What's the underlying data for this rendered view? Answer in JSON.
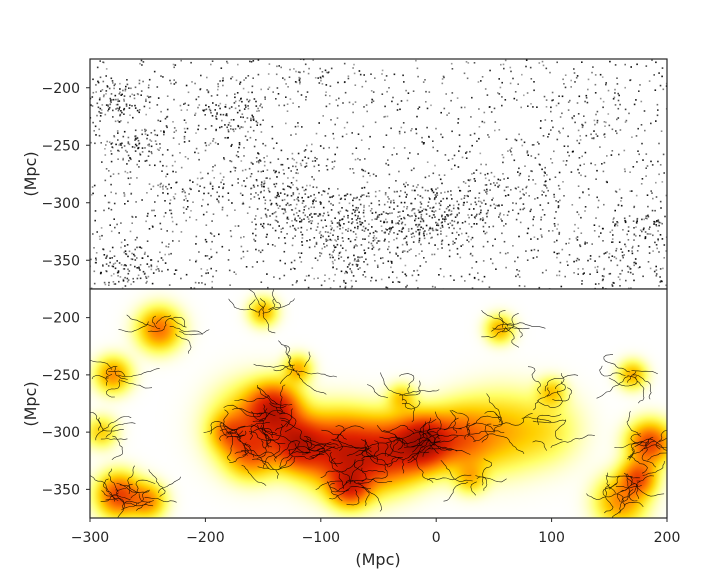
{
  "chart_data": [
    {
      "type": "scatter",
      "panel": "top",
      "description_free": true,
      "xlim": [
        -300,
        200
      ],
      "ylim": [
        -375,
        -175
      ],
      "ylabel": "(Mpc)",
      "yticks": [
        -200,
        -250,
        -300,
        -350
      ],
      "ytick_labels": [
        "−200",
        "−250",
        "−300",
        "−350"
      ],
      "grid": false,
      "point_color": "#000000",
      "clusters": [
        {
          "x": -280,
          "y": -210,
          "spread": 14,
          "weight": 60
        },
        {
          "x": -260,
          "y": -250,
          "spread": 12,
          "weight": 40
        },
        {
          "x": -200,
          "y": -230,
          "spread": 20,
          "weight": 30
        },
        {
          "x": -170,
          "y": -215,
          "spread": 15,
          "weight": 35
        },
        {
          "x": -140,
          "y": -280,
          "spread": 18,
          "weight": 70
        },
        {
          "x": -120,
          "y": -310,
          "spread": 15,
          "weight": 60
        },
        {
          "x": -80,
          "y": -320,
          "spread": 22,
          "weight": 80
        },
        {
          "x": -40,
          "y": -325,
          "spread": 20,
          "weight": 60
        },
        {
          "x": -10,
          "y": -310,
          "spread": 18,
          "weight": 80
        },
        {
          "x": 30,
          "y": -300,
          "spread": 20,
          "weight": 50
        },
        {
          "x": 80,
          "y": -290,
          "spread": 22,
          "weight": 35
        },
        {
          "x": -270,
          "y": -355,
          "spread": 16,
          "weight": 70
        },
        {
          "x": -80,
          "y": -350,
          "spread": 14,
          "weight": 30
        },
        {
          "x": 180,
          "y": -320,
          "spread": 15,
          "weight": 45
        },
        {
          "x": 160,
          "y": -355,
          "spread": 18,
          "weight": 40
        },
        {
          "x": -110,
          "y": -190,
          "spread": 14,
          "weight": 25
        },
        {
          "x": 130,
          "y": -230,
          "spread": 18,
          "weight": 25
        },
        {
          "x": -230,
          "y": -290,
          "spread": 16,
          "weight": 25
        }
      ],
      "background_points": 1500
    },
    {
      "type": "heatmap",
      "panel": "bottom",
      "xlim": [
        -300,
        200
      ],
      "ylim": [
        -375,
        -175
      ],
      "xlabel": "(Mpc)",
      "ylabel": "(Mpc)",
      "xticks": [
        -300,
        -200,
        -100,
        0,
        100,
        200
      ],
      "xtick_labels": [
        "−300",
        "−200",
        "−100",
        "0",
        "100",
        "200"
      ],
      "yticks": [
        -200,
        -250,
        -300,
        -350
      ],
      "ytick_labels": [
        "−200",
        "−250",
        "−300",
        "−350"
      ],
      "grid": false,
      "colormap": [
        "#ffffff",
        "#ffff66",
        "#ffd000",
        "#ff7a00",
        "#e02000",
        "#7a0000"
      ],
      "filament_color": "#000000",
      "density_peaks": [
        {
          "x": -140,
          "y": -280,
          "sigma": 14,
          "amp": 1.0
        },
        {
          "x": -120,
          "y": -310,
          "sigma": 14,
          "amp": 1.0
        },
        {
          "x": -160,
          "y": -295,
          "sigma": 22,
          "amp": 0.5
        },
        {
          "x": -90,
          "y": -315,
          "sigma": 20,
          "amp": 0.8
        },
        {
          "x": -60,
          "y": -320,
          "sigma": 20,
          "amp": 0.8
        },
        {
          "x": -30,
          "y": -315,
          "sigma": 18,
          "amp": 0.7
        },
        {
          "x": -10,
          "y": -308,
          "sigma": 14,
          "amp": 1.1
        },
        {
          "x": 20,
          "y": -305,
          "sigma": 18,
          "amp": 0.6
        },
        {
          "x": 55,
          "y": -300,
          "sigma": 22,
          "amp": 0.35
        },
        {
          "x": 95,
          "y": -298,
          "sigma": 20,
          "amp": 0.2
        },
        {
          "x": -160,
          "y": -318,
          "sigma": 14,
          "amp": 0.5
        },
        {
          "x": -75,
          "y": -348,
          "sigma": 11,
          "amp": 0.8
        },
        {
          "x": -275,
          "y": -355,
          "sigma": 12,
          "amp": 0.8
        },
        {
          "x": -250,
          "y": -360,
          "sigma": 10,
          "amp": 0.5
        },
        {
          "x": -240,
          "y": -210,
          "sigma": 12,
          "amp": 0.6
        },
        {
          "x": -280,
          "y": -250,
          "sigma": 10,
          "amp": 0.5
        },
        {
          "x": 185,
          "y": -310,
          "sigma": 12,
          "amp": 0.8
        },
        {
          "x": 175,
          "y": -340,
          "sigma": 10,
          "amp": 0.7
        },
        {
          "x": 160,
          "y": -360,
          "sigma": 14,
          "amp": 0.5
        },
        {
          "x": -120,
          "y": -245,
          "sigma": 8,
          "amp": 0.4
        },
        {
          "x": -150,
          "y": -195,
          "sigma": 8,
          "amp": 0.4
        },
        {
          "x": 55,
          "y": -210,
          "sigma": 8,
          "amp": 0.4
        },
        {
          "x": 170,
          "y": -250,
          "sigma": 8,
          "amp": 0.4
        },
        {
          "x": 100,
          "y": -265,
          "sigma": 8,
          "amp": 0.3
        },
        {
          "x": -30,
          "y": -270,
          "sigma": 8,
          "amp": 0.3
        },
        {
          "x": 30,
          "y": -340,
          "sigma": 9,
          "amp": 0.3
        },
        {
          "x": -180,
          "y": -300,
          "sigma": 10,
          "amp": 0.4
        },
        {
          "x": -290,
          "y": -300,
          "sigma": 9,
          "amp": 0.3
        }
      ]
    }
  ]
}
